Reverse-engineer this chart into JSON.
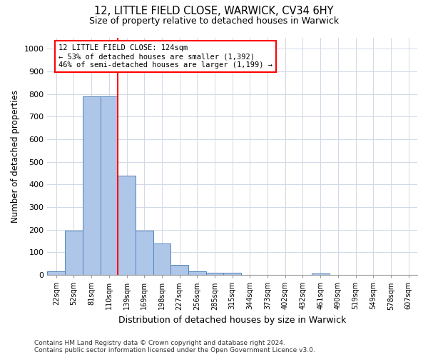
{
  "title1": "12, LITTLE FIELD CLOSE, WARWICK, CV34 6HY",
  "title2": "Size of property relative to detached houses in Warwick",
  "xlabel": "Distribution of detached houses by size in Warwick",
  "ylabel": "Number of detached properties",
  "footnote": "Contains HM Land Registry data © Crown copyright and database right 2024.\nContains public sector information licensed under the Open Government Licence v3.0.",
  "categories": [
    "22sqm",
    "52sqm",
    "81sqm",
    "110sqm",
    "139sqm",
    "169sqm",
    "198sqm",
    "227sqm",
    "256sqm",
    "285sqm",
    "315sqm",
    "344sqm",
    "373sqm",
    "402sqm",
    "432sqm",
    "461sqm",
    "490sqm",
    "519sqm",
    "549sqm",
    "578sqm",
    "607sqm"
  ],
  "values": [
    15,
    195,
    790,
    790,
    440,
    195,
    140,
    45,
    15,
    10,
    10,
    0,
    0,
    0,
    0,
    8,
    0,
    0,
    0,
    0,
    0
  ],
  "bar_color": "#aec6e8",
  "bar_edge_color": "#5585bb",
  "grid_color": "#d0d8e8",
  "vline_x": 3.5,
  "vline_color": "red",
  "annotation_text": "12 LITTLE FIELD CLOSE: 124sqm\n← 53% of detached houses are smaller (1,392)\n46% of semi-detached houses are larger (1,199) →",
  "annotation_box_color": "red",
  "ylim": [
    0,
    1050
  ],
  "yticks": [
    0,
    100,
    200,
    300,
    400,
    500,
    600,
    700,
    800,
    900,
    1000
  ],
  "figsize": [
    6.0,
    5.0
  ],
  "dpi": 100
}
